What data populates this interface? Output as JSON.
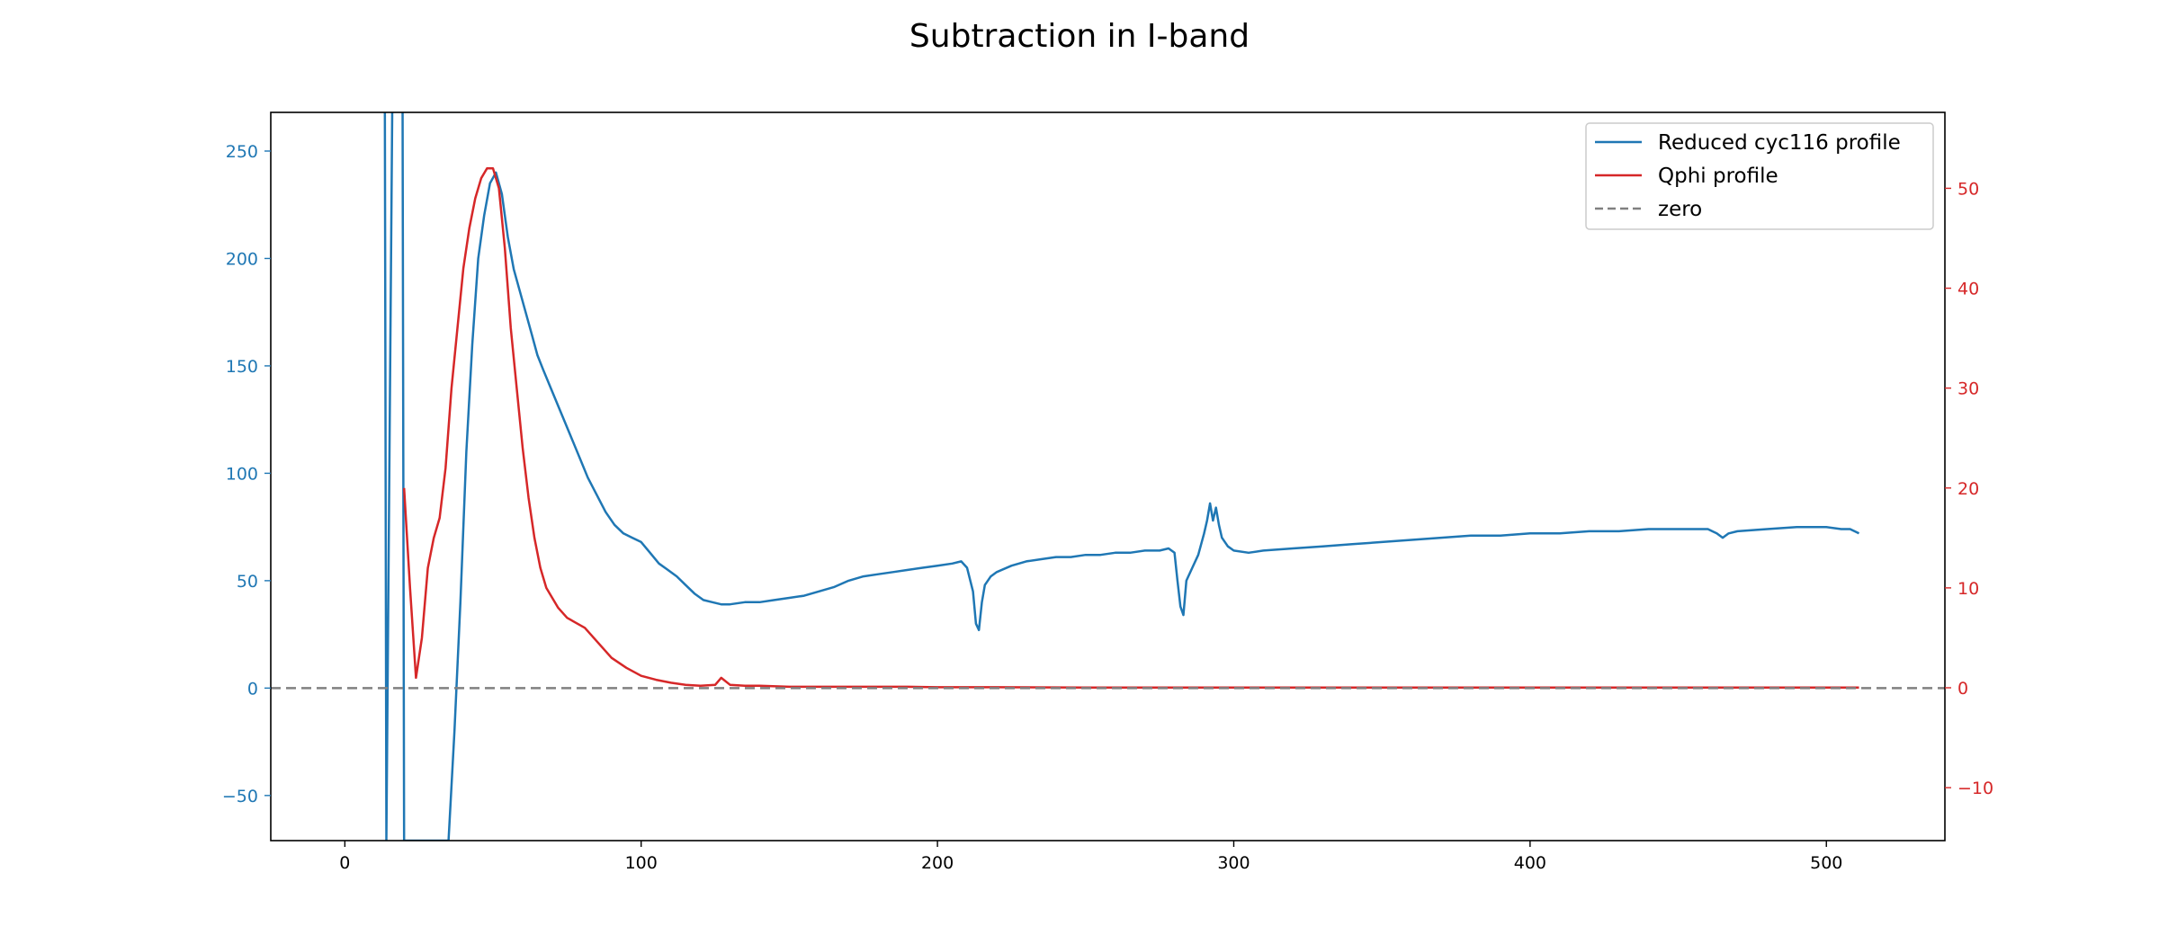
{
  "chart_data": {
    "type": "line",
    "title": "Subtraction in I-band",
    "xlabel": "",
    "ylabel": "",
    "xlim": [
      -25,
      540
    ],
    "ylim_left": [
      -71,
      268
    ],
    "ylim_right": [
      -15.3,
      57.6
    ],
    "x_ticks": [
      0,
      100,
      200,
      300,
      400,
      500
    ],
    "y_ticks_left": [
      -50,
      0,
      50,
      100,
      150,
      200,
      250
    ],
    "y_ticks_right": [
      -10,
      0,
      10,
      20,
      30,
      40,
      50
    ],
    "grid": false,
    "legend_position": "top-right",
    "colors": {
      "left_axis": "#1f77b4",
      "right_axis": "#d62728",
      "zero": "#808080"
    },
    "series": [
      {
        "name": "Reduced cyc116 profile",
        "axis": "left",
        "color": "#1f77b4",
        "x": [
          6,
          6.5,
          13,
          14,
          16,
          18,
          19,
          20,
          23,
          26,
          29,
          31,
          33,
          35,
          37,
          39,
          41,
          43,
          45,
          47,
          49,
          51,
          53,
          55,
          57,
          59,
          61,
          63,
          65,
          67,
          70,
          73,
          76,
          79,
          82,
          85,
          88,
          91,
          94,
          97,
          100,
          103,
          106,
          109,
          112,
          115,
          118,
          121,
          124,
          127,
          130,
          135,
          140,
          145,
          150,
          155,
          160,
          165,
          170,
          175,
          180,
          185,
          190,
          195,
          200,
          205,
          208,
          210,
          212,
          213,
          214,
          215,
          216,
          218,
          220,
          225,
          230,
          235,
          240,
          245,
          250,
          255,
          260,
          265,
          270,
          275,
          278,
          280,
          281,
          282,
          283,
          284,
          286,
          288,
          290,
          291,
          292,
          293,
          294,
          295,
          296,
          298,
          300,
          305,
          310,
          320,
          330,
          340,
          350,
          360,
          370,
          380,
          390,
          400,
          410,
          420,
          430,
          440,
          450,
          460,
          463,
          465,
          467,
          470,
          480,
          490,
          500,
          505,
          508,
          511
        ],
        "y": [
          268,
          600,
          600,
          -71,
          268,
          600,
          600,
          -71,
          -71,
          -71,
          -71,
          -71,
          -71,
          -71,
          -20,
          40,
          110,
          160,
          200,
          220,
          235,
          240,
          230,
          210,
          195,
          185,
          175,
          165,
          155,
          148,
          138,
          128,
          118,
          108,
          98,
          90,
          82,
          76,
          72,
          70,
          68,
          63,
          58,
          55,
          52,
          48,
          44,
          41,
          40,
          39,
          39,
          40,
          40,
          41,
          42,
          43,
          45,
          47,
          50,
          52,
          53,
          54,
          55,
          56,
          57,
          58,
          59,
          56,
          45,
          30,
          27,
          40,
          48,
          52,
          54,
          57,
          59,
          60,
          61,
          61,
          62,
          62,
          63,
          63,
          64,
          64,
          65,
          63,
          50,
          38,
          34,
          50,
          56,
          62,
          72,
          78,
          86,
          78,
          84,
          76,
          70,
          66,
          64,
          63,
          64,
          65,
          66,
          67,
          68,
          69,
          70,
          71,
          71,
          72,
          72,
          73,
          73,
          74,
          74,
          74,
          72,
          70,
          72,
          73,
          74,
          75,
          75,
          74,
          74,
          72
        ]
      },
      {
        "name": "Qphi profile",
        "axis": "right",
        "color": "#d62728",
        "x": [
          20,
          22,
          24,
          26,
          28,
          30,
          32,
          34,
          36,
          38,
          40,
          42,
          44,
          46,
          48,
          50,
          52,
          54,
          56,
          58,
          60,
          62,
          64,
          66,
          68,
          70,
          72,
          75,
          78,
          81,
          84,
          87,
          90,
          95,
          100,
          105,
          110,
          115,
          120,
          125,
          127,
          130,
          135,
          140,
          150,
          160,
          170,
          180,
          190,
          200,
          220,
          250,
          300,
          350,
          400,
          450,
          500,
          511
        ],
        "y": [
          20,
          10,
          1,
          5,
          12,
          15,
          17,
          22,
          30,
          36,
          42,
          46,
          49,
          51,
          52,
          52,
          50,
          44,
          36,
          30,
          24,
          19,
          15,
          12,
          10,
          9,
          8,
          7,
          6.5,
          6,
          5,
          4,
          3,
          2,
          1.2,
          0.8,
          0.5,
          0.3,
          0.2,
          0.3,
          1,
          0.3,
          0.2,
          0.2,
          0.1,
          0.1,
          0.1,
          0.1,
          0.1,
          0.05,
          0.05,
          0.03,
          0.03,
          0.02,
          0.02,
          0.02,
          0.02,
          0.02
        ]
      },
      {
        "name": "zero",
        "axis": "left",
        "color": "#808080",
        "dashed": true,
        "x": [
          -25,
          540
        ],
        "y": [
          0,
          0
        ]
      }
    ]
  }
}
